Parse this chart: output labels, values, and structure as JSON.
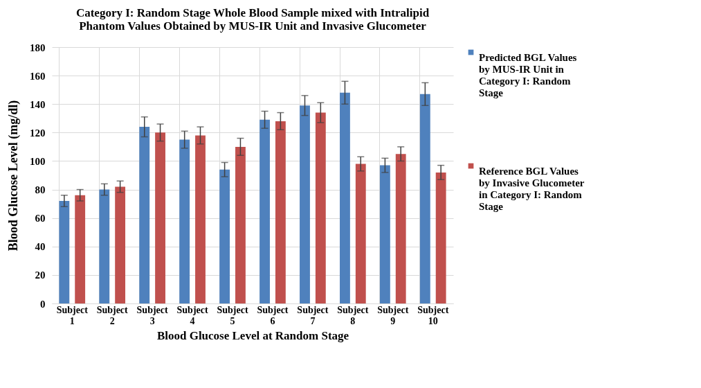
{
  "chart_data": {
    "type": "bar",
    "title": "Category I: Random Stage Whole Blood Sample mixed with Intralipid Phantom Values Obtained by MUS-IR Unit and Invasive Glucometer",
    "xlabel": "Blood Glucose Level at Random Stage",
    "ylabel": "Blood Glucose Level (mg/dl)",
    "categories": [
      "Subject 1",
      "Subject 2",
      "Subject 3",
      "Subject 4",
      "Subject 5",
      "Subject 6",
      "Subject 7",
      "Subject 8",
      "Subject 9",
      "Subject 10"
    ],
    "series": [
      {
        "name": "Predicted BGL Values by MUS-IR Unit in Category I: Random Stage",
        "color": "#4f81bd",
        "values": [
          72,
          80,
          124,
          115,
          94,
          129,
          139,
          148,
          97,
          147
        ],
        "errors": [
          4,
          4,
          7,
          6,
          5,
          6,
          7,
          8,
          5,
          8
        ]
      },
      {
        "name": "Reference BGL Values by Invasive Glucometer in Category I: Random Stage",
        "color": "#c0504d",
        "values": [
          76,
          82,
          120,
          118,
          110,
          128,
          134,
          98,
          105,
          92
        ],
        "errors": [
          4,
          4,
          6,
          6,
          6,
          6,
          7,
          5,
          5,
          5
        ]
      }
    ],
    "ylim": [
      0,
      180
    ],
    "yticks": [
      0,
      20,
      40,
      60,
      80,
      100,
      120,
      140,
      160,
      180
    ],
    "grid": true,
    "legend": "right"
  }
}
